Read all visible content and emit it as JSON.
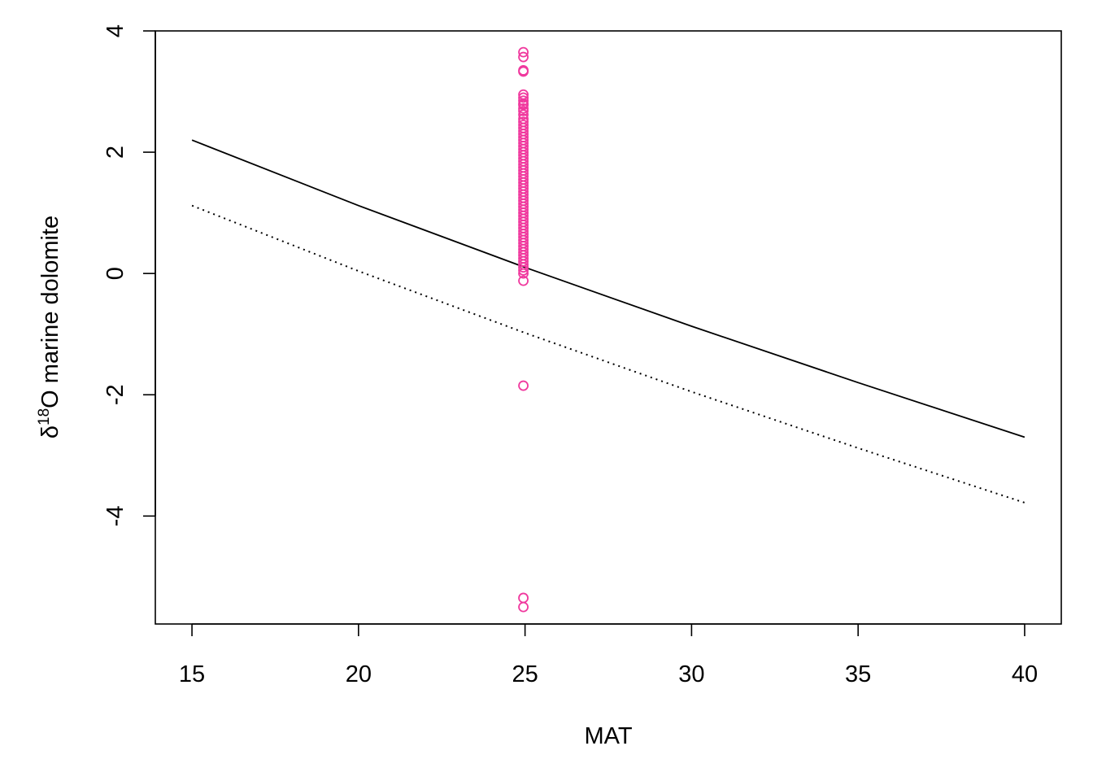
{
  "chart_data": {
    "type": "scatter",
    "xlabel": "MAT",
    "ylabel": {
      "prefix": "δ",
      "superscript": "18",
      "rest": "O marine dolomite"
    },
    "xlim": [
      13.9,
      41.1
    ],
    "ylim": [
      -5.78,
      4.0
    ],
    "x_ticks": [
      15,
      20,
      25,
      30,
      35,
      40
    ],
    "x_tick_labels": [
      "15",
      "20",
      "25",
      "30",
      "35",
      "40"
    ],
    "y_ticks": [
      4,
      2,
      0,
      -2,
      -4
    ],
    "y_tick_labels": [
      "4",
      "2",
      "0",
      "-2",
      "-4"
    ],
    "grid": false,
    "lines": [
      {
        "style": "solid",
        "color": "#000000",
        "x": [
          15,
          20,
          25,
          30,
          35,
          40
        ],
        "y": [
          2.2,
          1.12,
          0.1,
          -0.87,
          -1.8,
          -2.7
        ]
      },
      {
        "style": "dotted",
        "color": "#000000",
        "x": [
          15,
          20,
          25,
          30,
          35,
          40
        ],
        "y": [
          1.12,
          0.04,
          -0.98,
          -1.95,
          -2.88,
          -3.78
        ]
      }
    ],
    "points": {
      "color": "#f0399e",
      "marker": "open-circle",
      "x": 24.95,
      "y": [
        3.65,
        3.57,
        3.35,
        3.33,
        2.95,
        2.9,
        2.85,
        2.8,
        2.78,
        2.72,
        2.68,
        2.62,
        2.55,
        2.5,
        2.45,
        2.4,
        2.35,
        2.3,
        2.25,
        2.2,
        2.15,
        2.1,
        2.05,
        2.0,
        1.95,
        1.9,
        1.85,
        1.8,
        1.75,
        1.7,
        1.65,
        1.6,
        1.55,
        1.5,
        1.45,
        1.4,
        1.35,
        1.3,
        1.25,
        1.2,
        1.15,
        1.1,
        1.05,
        1.0,
        0.95,
        0.9,
        0.85,
        0.8,
        0.75,
        0.7,
        0.65,
        0.6,
        0.55,
        0.5,
        0.45,
        0.4,
        0.35,
        0.3,
        0.25,
        0.2,
        0.15,
        0.1,
        0.05,
        0.0,
        -0.12,
        -1.85,
        -5.35,
        -5.5
      ]
    }
  }
}
